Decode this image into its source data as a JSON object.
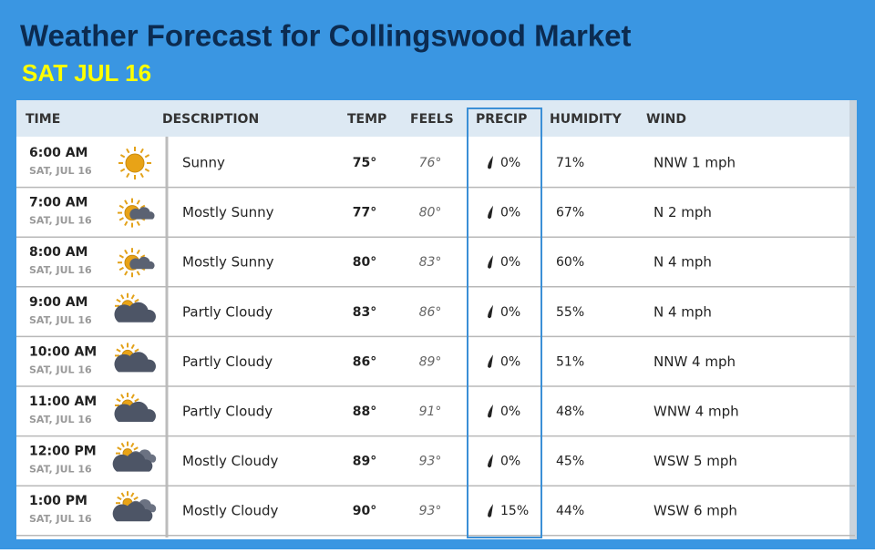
{
  "header": {
    "title": "Weather Forecast for Collingswood Market",
    "date": "SAT JUL 16"
  },
  "table": {
    "columns": [
      "TIME",
      "DESCRIPTION",
      "TEMP",
      "FEELS",
      "PRECIP",
      "HUMIDITY",
      "WIND"
    ],
    "rows": [
      {
        "time": "6:00 AM",
        "date": "SAT, JUL 16",
        "description": "Sunny",
        "temp": "75°",
        "feels": "76°",
        "precip": "0%",
        "humidity": "71%",
        "wind": "NNW 1 mph"
      },
      {
        "time": "7:00 AM",
        "date": "SAT, JUL 16",
        "description": "Mostly Sunny",
        "temp": "77°",
        "feels": "80°",
        "precip": "0%",
        "humidity": "67%",
        "wind": "N 2 mph"
      },
      {
        "time": "8:00 AM",
        "date": "SAT, JUL 16",
        "description": "Mostly Sunny",
        "temp": "80°",
        "feels": "83°",
        "precip": "0%",
        "humidity": "60%",
        "wind": "N 4 mph"
      },
      {
        "time": "9:00 AM",
        "date": "SAT, JUL 16",
        "description": "Partly Cloudy",
        "temp": "83°",
        "feels": "86°",
        "precip": "0%",
        "humidity": "55%",
        "wind": "N 4 mph"
      },
      {
        "time": "10:00 AM",
        "date": "SAT, JUL 16",
        "description": "Partly Cloudy",
        "temp": "86°",
        "feels": "89°",
        "precip": "0%",
        "humidity": "51%",
        "wind": "NNW 4 mph"
      },
      {
        "time": "11:00 AM",
        "date": "SAT, JUL 16",
        "description": "Partly Cloudy",
        "temp": "88°",
        "feels": "91°",
        "precip": "0%",
        "humidity": "48%",
        "wind": "WNW 4 mph"
      },
      {
        "time": "12:00 PM",
        "date": "SAT, JUL 16",
        "description": "Mostly Cloudy",
        "temp": "89°",
        "feels": "93°",
        "precip": "0%",
        "humidity": "45%",
        "wind": "WSW 5 mph"
      },
      {
        "time": "1:00 PM",
        "date": "SAT, JUL 16",
        "description": "Mostly Cloudy",
        "temp": "90°",
        "feels": "93°",
        "precip": "15%",
        "humidity": "44%",
        "wind": "WSW 6 mph"
      }
    ]
  }
}
